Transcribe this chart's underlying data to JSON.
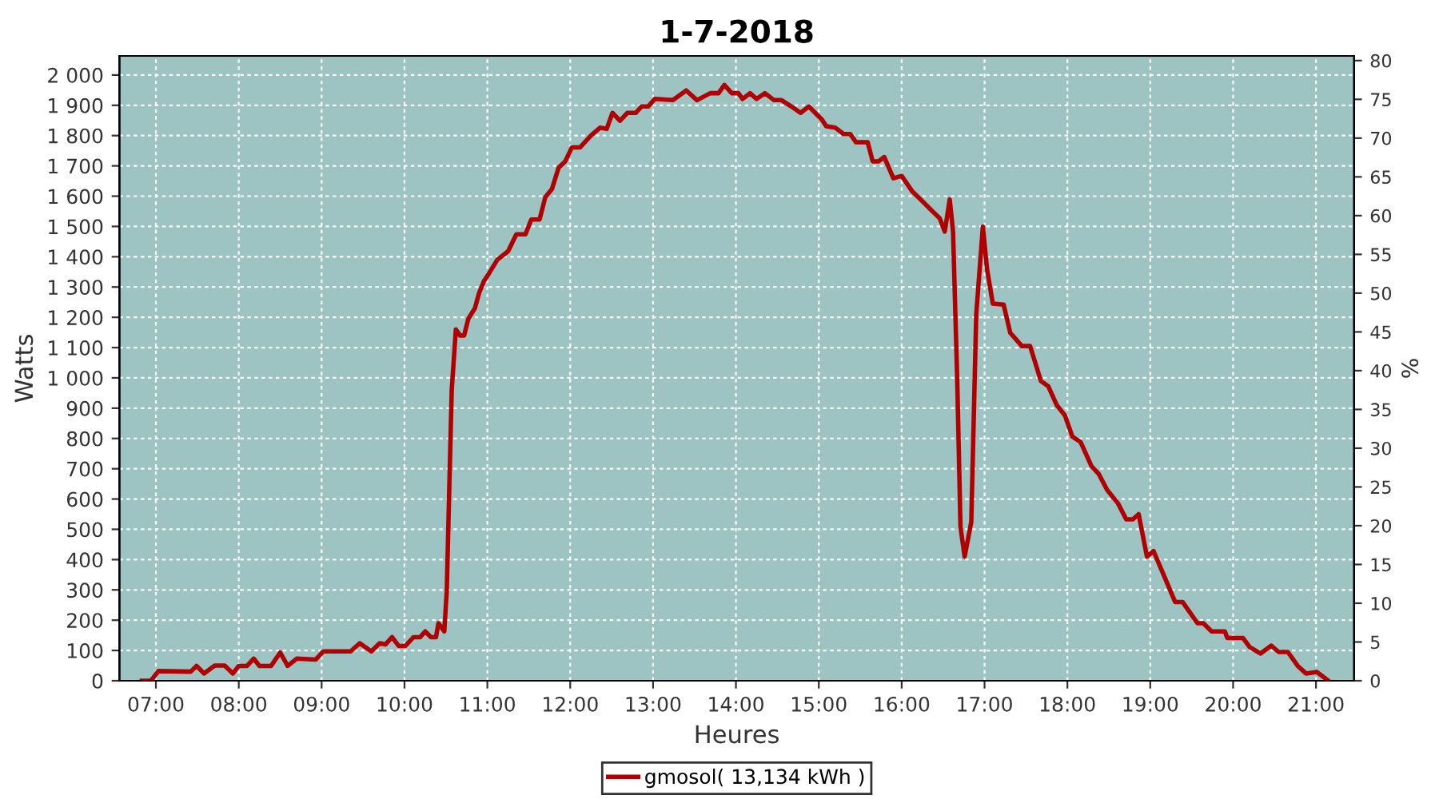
{
  "chart_data": {
    "type": "line",
    "title": "1-7-2018",
    "xlabel": "Heures",
    "ylabel": "Watts",
    "y2label": "%",
    "xlim": [
      6.56,
      21.46
    ],
    "xticks": [
      {
        "value": 7,
        "label": "07:00"
      },
      {
        "value": 8,
        "label": "08:00"
      },
      {
        "value": 9,
        "label": "09:00"
      },
      {
        "value": 10,
        "label": "10:00"
      },
      {
        "value": 11,
        "label": "11:00"
      },
      {
        "value": 12,
        "label": "12:00"
      },
      {
        "value": 13,
        "label": "13:00"
      },
      {
        "value": 14,
        "label": "14:00"
      },
      {
        "value": 15,
        "label": "15:00"
      },
      {
        "value": 16,
        "label": "16:00"
      },
      {
        "value": 17,
        "label": "17:00"
      },
      {
        "value": 18,
        "label": "18:00"
      },
      {
        "value": 19,
        "label": "19:00"
      },
      {
        "value": 20,
        "label": "20:00"
      },
      {
        "value": 21,
        "label": "21:00"
      }
    ],
    "ylim": [
      0,
      2063
    ],
    "yticks": [
      0,
      100,
      200,
      300,
      400,
      500,
      600,
      700,
      800,
      900,
      {
        "value": 1000,
        "label": "1 000"
      },
      {
        "value": 1100,
        "label": "1 100"
      },
      {
        "value": 1200,
        "label": "1 200"
      },
      {
        "value": 1300,
        "label": "1 300"
      },
      {
        "value": 1400,
        "label": "1 400"
      },
      {
        "value": 1500,
        "label": "1 500"
      },
      {
        "value": 1600,
        "label": "1 600"
      },
      {
        "value": 1700,
        "label": "1 700"
      },
      {
        "value": 1800,
        "label": "1 800"
      },
      {
        "value": 1900,
        "label": "1 900"
      },
      {
        "value": 2000,
        "label": "2 000"
      }
    ],
    "y2lim": [
      0,
      80.6
    ],
    "y2ticks": [
      0,
      5,
      10,
      15,
      20,
      25,
      30,
      35,
      40,
      45,
      50,
      55,
      60,
      65,
      70,
      75,
      80
    ],
    "grid": true,
    "legend": "bottom",
    "line_style": "solid",
    "marker": "none",
    "series": [
      {
        "name": "gmosol( 13,134 kWh )",
        "color": "#b00000",
        "x": [
          6.83,
          6.94,
          7.03,
          7.42,
          7.49,
          7.58,
          7.71,
          7.83,
          7.93,
          8.0,
          8.1,
          8.18,
          8.25,
          8.39,
          8.5,
          8.59,
          8.7,
          8.93,
          9.02,
          9.35,
          9.46,
          9.6,
          9.7,
          9.77,
          9.85,
          9.93,
          10.01,
          10.11,
          10.19,
          10.25,
          10.32,
          10.38,
          10.41,
          10.48,
          10.51,
          10.54,
          10.57,
          10.62,
          10.67,
          10.72,
          10.77,
          10.85,
          10.9,
          10.96,
          11.02,
          11.12,
          11.25,
          11.35,
          11.46,
          11.53,
          11.63,
          11.7,
          11.78,
          11.86,
          11.94,
          12.02,
          12.12,
          12.25,
          12.36,
          12.44,
          12.51,
          12.6,
          12.69,
          12.79,
          12.86,
          12.94,
          13.02,
          13.24,
          13.4,
          13.53,
          13.69,
          13.79,
          13.86,
          13.95,
          14.03,
          14.08,
          14.17,
          14.25,
          14.35,
          14.46,
          14.55,
          14.67,
          14.78,
          14.88,
          15.04,
          15.09,
          15.2,
          15.3,
          15.38,
          15.45,
          15.59,
          15.65,
          15.72,
          15.79,
          15.9,
          16.0,
          16.13,
          16.23,
          16.36,
          16.46,
          16.52,
          16.58,
          16.62,
          16.67,
          16.71,
          16.76,
          16.84,
          16.9,
          16.98,
          17.03,
          17.1,
          17.23,
          17.31,
          17.45,
          17.55,
          17.68,
          17.77,
          17.87,
          17.97,
          18.06,
          18.16,
          18.29,
          18.38,
          18.48,
          18.61,
          18.71,
          18.79,
          18.86,
          18.96,
          19.04,
          19.15,
          19.3,
          19.39,
          19.57,
          19.64,
          19.74,
          19.9,
          19.93,
          20.12,
          20.2,
          20.33,
          20.46,
          20.55,
          20.66,
          20.78,
          20.88,
          21.01,
          21.15
        ],
        "values": [
          0,
          0,
          32,
          30,
          49,
          24,
          50,
          50,
          24,
          49,
          49,
          73,
          49,
          49,
          93,
          49,
          73,
          70,
          97,
          97,
          124,
          97,
          124,
          120,
          144,
          115,
          115,
          144,
          144,
          163,
          144,
          144,
          190,
          163,
          295,
          630,
          960,
          1160,
          1140,
          1140,
          1195,
          1230,
          1280,
          1320,
          1345,
          1390,
          1418,
          1474,
          1474,
          1523,
          1523,
          1597,
          1624,
          1694,
          1715,
          1761,
          1761,
          1800,
          1826,
          1822,
          1875,
          1849,
          1875,
          1875,
          1896,
          1896,
          1921,
          1917,
          1949,
          1917,
          1940,
          1940,
          1967,
          1940,
          1940,
          1921,
          1940,
          1921,
          1940,
          1917,
          1917,
          1896,
          1875,
          1896,
          1852,
          1831,
          1826,
          1805,
          1805,
          1778,
          1778,
          1715,
          1715,
          1729,
          1659,
          1667,
          1615,
          1589,
          1553,
          1527,
          1483,
          1589,
          1483,
          999,
          507,
          410,
          524,
          1210,
          1500,
          1360,
          1245,
          1242,
          1149,
          1105,
          1105,
          990,
          972,
          911,
          876,
          806,
          788,
          709,
          682,
          630,
          586,
          533,
          533,
          550,
          410,
          428,
          357,
          260,
          260,
          190,
          190,
          163,
          163,
          141,
          141,
          111,
          90,
          116,
          95,
          95,
          49,
          24,
          29,
          0
        ]
      }
    ]
  }
}
